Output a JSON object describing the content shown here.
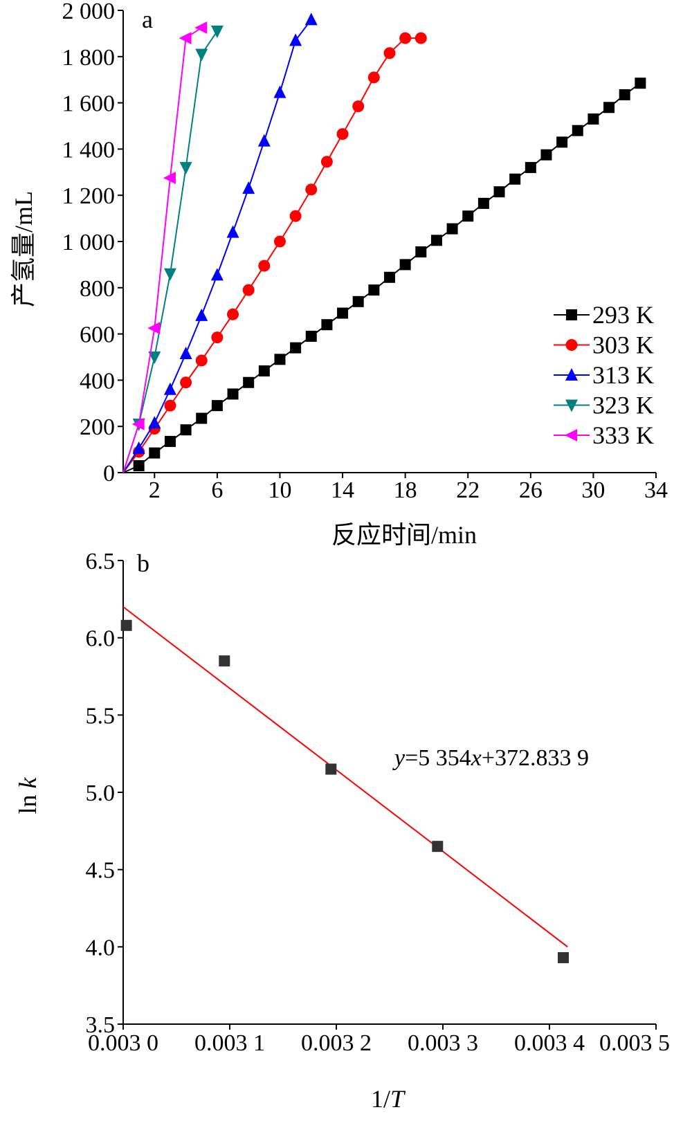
{
  "chart_data": [
    {
      "panel": "a",
      "type": "line",
      "xlabel": "反应时间/min",
      "ylabel": "产氢量/mL",
      "xlim": [
        0,
        34
      ],
      "ylim": [
        0,
        2000
      ],
      "xticks": [
        2,
        6,
        10,
        14,
        18,
        22,
        26,
        30,
        34
      ],
      "yticks": [
        0,
        200,
        400,
        600,
        800,
        1000,
        1200,
        1400,
        1600,
        1800,
        2000
      ],
      "ytick_labels": [
        "0",
        "200",
        "400",
        "600",
        "800",
        "1 000",
        "1 200",
        "1 400",
        "1 600",
        "1 800",
        "2 000"
      ],
      "legend_position": "lower-right",
      "series": [
        {
          "name": "293 K",
          "color": "#000000",
          "marker": "square",
          "x": [
            0,
            1,
            2,
            3,
            4,
            5,
            6,
            7,
            8,
            9,
            10,
            11,
            12,
            13,
            14,
            15,
            16,
            17,
            18,
            19,
            20,
            21,
            22,
            23,
            24,
            25,
            26,
            27,
            28,
            29,
            30,
            31,
            32,
            33
          ],
          "y": [
            0,
            30,
            85,
            135,
            185,
            235,
            290,
            340,
            390,
            440,
            490,
            540,
            590,
            640,
            690,
            740,
            790,
            845,
            900,
            955,
            1005,
            1055,
            1110,
            1165,
            1215,
            1270,
            1320,
            1375,
            1430,
            1480,
            1530,
            1580,
            1635,
            1685
          ]
        },
        {
          "name": "303 K",
          "color": "#ff0000",
          "marker": "circle",
          "x": [
            0,
            1,
            2,
            3,
            4,
            5,
            6,
            7,
            8,
            9,
            10,
            11,
            12,
            13,
            14,
            15,
            16,
            17,
            18,
            19
          ],
          "y": [
            0,
            90,
            190,
            290,
            390,
            485,
            585,
            685,
            790,
            895,
            1000,
            1110,
            1225,
            1345,
            1465,
            1585,
            1710,
            1815,
            1880,
            1880
          ]
        },
        {
          "name": "313 K",
          "color": "#0000ff",
          "marker": "triangle-up",
          "x": [
            0,
            1,
            2,
            3,
            4,
            5,
            6,
            7,
            8,
            9,
            10,
            11,
            12
          ],
          "y": [
            0,
            105,
            215,
            360,
            515,
            680,
            855,
            1040,
            1230,
            1435,
            1645,
            1870,
            1960
          ]
        },
        {
          "name": "323 K",
          "color": "#008080",
          "marker": "triangle-down",
          "x": [
            0,
            1,
            2,
            3,
            4,
            5,
            6
          ],
          "y": [
            0,
            210,
            500,
            860,
            1320,
            1810,
            1910
          ]
        },
        {
          "name": "333 K",
          "color": "#ff00ff",
          "marker": "triangle-left",
          "x": [
            0,
            1,
            2,
            3,
            4,
            5
          ],
          "y": [
            0,
            210,
            625,
            1275,
            1880,
            1925
          ]
        }
      ]
    },
    {
      "panel": "b",
      "type": "scatter",
      "xlabel": "1/T",
      "ylabel": "ln k",
      "xlim": [
        0.003,
        0.0035
      ],
      "ylim": [
        3.5,
        6.5
      ],
      "xticks": [
        0.003,
        0.0031,
        0.0032,
        0.0033,
        0.0034,
        0.0035
      ],
      "xtick_labels": [
        "0.003 0",
        "0.003 1",
        "0.003 2",
        "0.003 3",
        "0.003 4",
        "0.003 5"
      ],
      "yticks": [
        3.5,
        4.0,
        4.5,
        5.0,
        5.5,
        6.0,
        6.5
      ],
      "ytick_labels": [
        "3.5",
        "4.0",
        "4.5",
        "5.0",
        "5.5",
        "6.0",
        "6.5"
      ],
      "points": {
        "color": "#333333",
        "marker": "square",
        "x": [
          0.003003,
          0.003095,
          0.003195,
          0.003295,
          0.003413
        ],
        "y": [
          6.08,
          5.85,
          5.15,
          4.65,
          3.93
        ]
      },
      "fit_line": {
        "color": "#ff0000",
        "x": [
          0.003,
          0.003417
        ],
        "y": [
          6.2,
          4.0
        ]
      },
      "equation": {
        "y": "y",
        "eq1": "=5 354",
        "x": "x",
        "eq2": "+372.833 9"
      }
    }
  ]
}
